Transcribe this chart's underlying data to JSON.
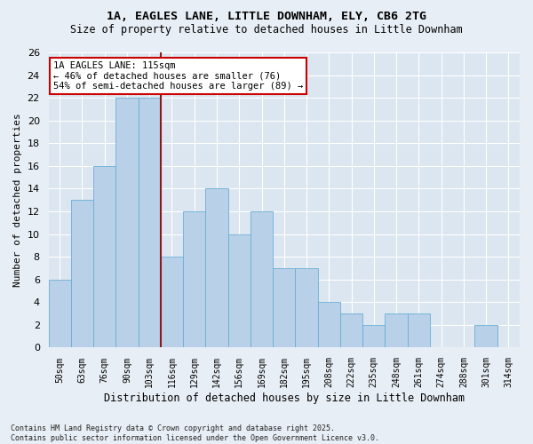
{
  "title_line1": "1A, EAGLES LANE, LITTLE DOWNHAM, ELY, CB6 2TG",
  "title_line2": "Size of property relative to detached houses in Little Downham",
  "xlabel": "Distribution of detached houses by size in Little Downham",
  "ylabel": "Number of detached properties",
  "categories": [
    "50sqm",
    "63sqm",
    "76sqm",
    "90sqm",
    "103sqm",
    "116sqm",
    "129sqm",
    "142sqm",
    "156sqm",
    "169sqm",
    "182sqm",
    "195sqm",
    "208sqm",
    "222sqm",
    "235sqm",
    "248sqm",
    "261sqm",
    "274sqm",
    "288sqm",
    "301sqm",
    "314sqm"
  ],
  "values": [
    6,
    13,
    16,
    22,
    22,
    8,
    12,
    14,
    10,
    12,
    7,
    7,
    4,
    3,
    2,
    3,
    3,
    0,
    0,
    2,
    0
  ],
  "bar_color": "#b8d0e8",
  "bar_edge_color": "#6aaed6",
  "vline_color": "#8b1a1a",
  "annotation_text": "1A EAGLES LANE: 115sqm\n← 46% of detached houses are smaller (76)\n54% of semi-detached houses are larger (89) →",
  "annotation_box_facecolor": "#ffffff",
  "annotation_box_edgecolor": "#cc0000",
  "ylim": [
    0,
    26
  ],
  "yticks": [
    0,
    2,
    4,
    6,
    8,
    10,
    12,
    14,
    16,
    18,
    20,
    22,
    24,
    26
  ],
  "background_color": "#e8eef5",
  "plot_bg_color": "#dce6f0",
  "grid_color": "#ffffff",
  "footer": "Contains HM Land Registry data © Crown copyright and database right 2025.\nContains public sector information licensed under the Open Government Licence v3.0."
}
